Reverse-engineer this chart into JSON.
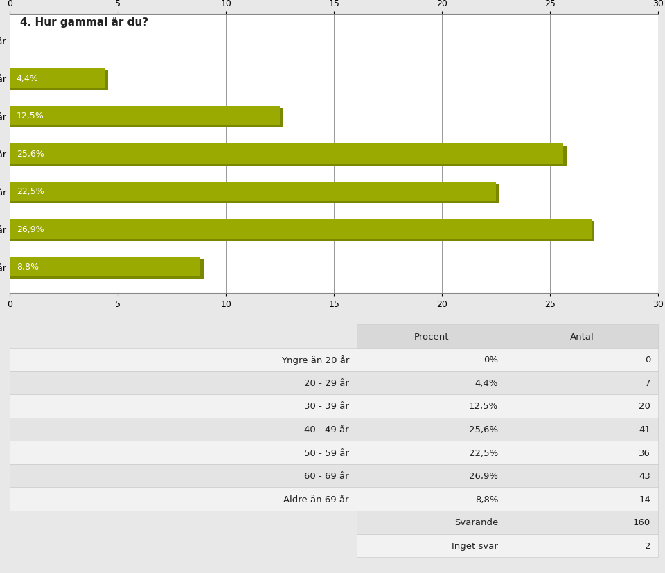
{
  "title": "4. Hur gammal är du?",
  "categories": [
    "Yngre än 20 år",
    "20 - 29 år",
    "30 - 39 år",
    "40 - 49 år",
    "50 - 59 år",
    "60 - 69 år",
    "Äldre än 69 år"
  ],
  "values": [
    0.0,
    4.4,
    12.5,
    25.6,
    22.5,
    26.9,
    8.8
  ],
  "bar_labels": [
    "",
    "4,4%",
    "12,5%",
    "25,6%",
    "22,5%",
    "26,9%",
    "8,8%"
  ],
  "bar_color": "#9aaa00",
  "bar_color_shadow": "#7a8800",
  "page_bg_color": "#e8e8e8",
  "chart_bg_color": "#ffffff",
  "xlim": [
    0,
    30
  ],
  "xticks": [
    0,
    5,
    10,
    15,
    20,
    25,
    30
  ],
  "title_fontsize": 11,
  "label_fontsize": 9,
  "tick_fontsize": 9,
  "table_header_bg": "#d8d8d8",
  "table_row_bg_light": "#f2f2f2",
  "table_row_bg_dark": "#e4e4e4",
  "table_rows": [
    [
      "Yngre än 20 år",
      "0%",
      "0"
    ],
    [
      "20 - 29 år",
      "4,4%",
      "7"
    ],
    [
      "30 - 39 år",
      "12,5%",
      "20"
    ],
    [
      "40 - 49 år",
      "25,6%",
      "41"
    ],
    [
      "50 - 59 år",
      "22,5%",
      "36"
    ],
    [
      "60 - 69 år",
      "26,9%",
      "43"
    ],
    [
      "Äldre än 69 år",
      "8,8%",
      "14"
    ],
    [
      "",
      "Svarande",
      "160"
    ],
    [
      "",
      "Inget svar",
      "2"
    ]
  ]
}
